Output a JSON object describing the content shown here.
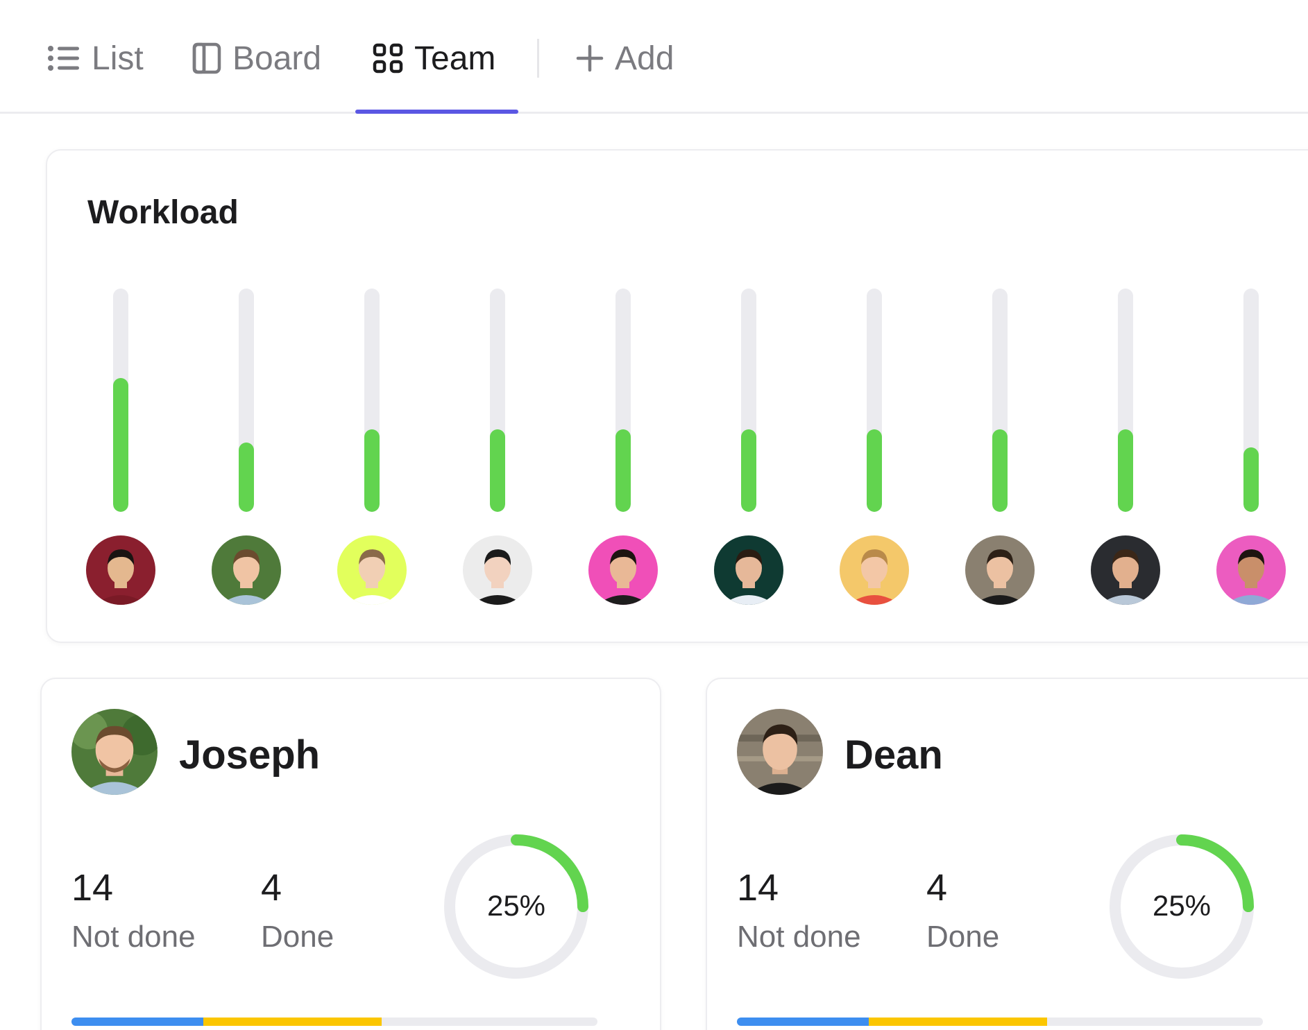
{
  "tabs": [
    {
      "label": "List",
      "icon": "list-icon"
    },
    {
      "label": "Board",
      "icon": "board-icon"
    },
    {
      "label": "Team",
      "icon": "grid-icon",
      "active": true
    },
    {
      "label": "Add",
      "icon": "plus-icon"
    }
  ],
  "workload": {
    "title": "Workload",
    "members": [
      {
        "level": 0.6,
        "avatar_bg": "#8a1f2e",
        "skin": "#e4b88f",
        "hair": "#1a1412",
        "shirt": "#7a1a26"
      },
      {
        "level": 0.31,
        "avatar_bg": "#4f7a3a",
        "skin": "#f0c4a4",
        "hair": "#6b4b2e",
        "shirt": "#a9c3d8"
      },
      {
        "level": 0.37,
        "avatar_bg": "#e2ff5c",
        "skin": "#f1cfb4",
        "hair": "#8a6a4a",
        "shirt": "#ffffff"
      },
      {
        "level": 0.37,
        "avatar_bg": "#ececec",
        "skin": "#f2d2bf",
        "hair": "#1b1b1b",
        "shirt": "#1b1b1b"
      },
      {
        "level": 0.37,
        "avatar_bg": "#f04fb8",
        "skin": "#e9b896",
        "hair": "#1d1410",
        "shirt": "#1d1d1d"
      },
      {
        "level": 0.37,
        "avatar_bg": "#0f3a32",
        "skin": "#e6b899",
        "hair": "#2a1c12",
        "shirt": "#e8eef5"
      },
      {
        "level": 0.37,
        "avatar_bg": "#f4c86a",
        "skin": "#f3c7a6",
        "hair": "#b98a4a",
        "shirt": "#e8503f"
      },
      {
        "level": 0.37,
        "avatar_bg": "#8a8070",
        "skin": "#ecc1a2",
        "hair": "#2d2016",
        "shirt": "#1b1b1b"
      },
      {
        "level": 0.37,
        "avatar_bg": "#2a2c30",
        "skin": "#e2b08e",
        "hair": "#3b2718",
        "shirt": "#b9c8d8"
      },
      {
        "level": 0.29,
        "avatar_bg": "#ec5cc0",
        "skin": "#c98f6a",
        "hair": "#1e1510",
        "shirt": "#8fa9d6"
      }
    ]
  },
  "people": [
    {
      "name": "Joseph",
      "not_done": "14",
      "not_done_label": "Not done",
      "done": "4",
      "done_label": "Done",
      "percent_text": "25%",
      "percent": 0.25,
      "progress": {
        "blue": 0.25,
        "yellow": 0.34
      }
    },
    {
      "name": "Dean",
      "not_done": "14",
      "not_done_label": "Not done",
      "done": "4",
      "done_label": "Done",
      "percent_text": "25%",
      "percent": 0.25,
      "progress": {
        "blue": 0.25,
        "yellow": 0.34
      }
    }
  ],
  "colors": {
    "accent": "#5b57e3",
    "bar_green": "#62d44f",
    "track": "#ebebef",
    "blue": "#3d8ef0",
    "yellow": "#fbc600"
  }
}
